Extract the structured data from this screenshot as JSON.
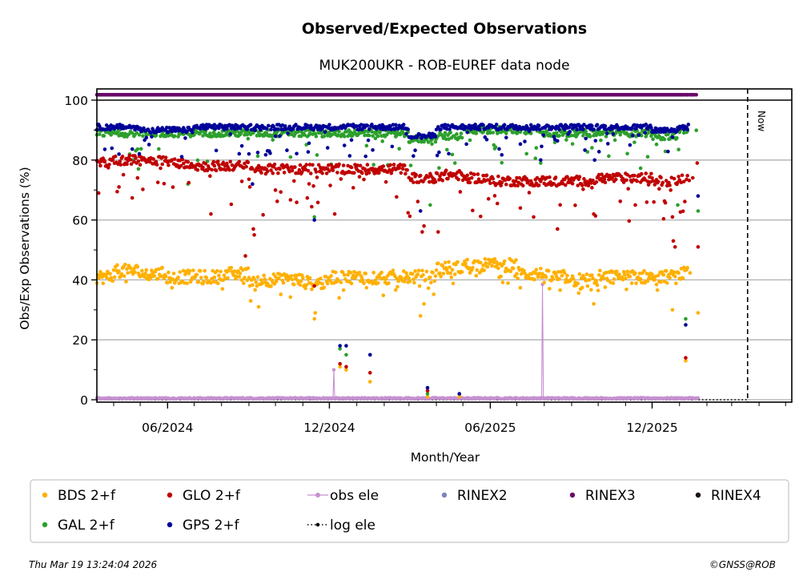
{
  "chart_data": {
    "type": "scatter",
    "title": "Observed/Expected Observations",
    "subtitle": "MUK200UKR - ROB-EUREF data node",
    "xlabel": "Month/Year",
    "ylabel": "Obs/Exp Observations (%)",
    "ylim": [
      0,
      100
    ],
    "yticks": [
      0,
      20,
      40,
      60,
      80,
      100
    ],
    "yminor_ticks": [
      10,
      30,
      50,
      70,
      90
    ],
    "xlim": [
      "2024-03-13",
      "2026-05-08"
    ],
    "xticks": [
      {
        "date": "2024-06-01",
        "label": "06/2024"
      },
      {
        "date": "2024-12-01",
        "label": "12/2024"
      },
      {
        "date": "2025-06-01",
        "label": "06/2025"
      },
      {
        "date": "2025-12-01",
        "label": "12/2025"
      }
    ],
    "xminor_ticks": "monthly",
    "grid": "horizontal",
    "now_marker": {
      "date": "2026-03-19",
      "label": "Now"
    },
    "data_start": "2024-03-13",
    "data_end": "2026-01-22",
    "series": [
      {
        "name": "BDS 2+f",
        "color": "#ffb000",
        "kind": "points",
        "monthly_level": {
          "2024-03": 41,
          "2024-04": 43,
          "2024-05": 42,
          "2024-06": 41,
          "2024-07": 41,
          "2024-08": 42,
          "2024-09": 40,
          "2024-10": 40,
          "2024-11": 39,
          "2024-12": 41,
          "2025-01": 41,
          "2025-02": 41,
          "2025-03": 41,
          "2025-04": 44,
          "2025-05": 45,
          "2025-06": 45,
          "2025-07": 42,
          "2025-08": 41,
          "2025-09": 40,
          "2025-10": 41,
          "2025-11": 41,
          "2025-12": 41,
          "2026-01": 42
        },
        "outliers": [
          [
            "2024-09-03",
            33
          ],
          [
            "2024-09-12",
            31
          ],
          [
            "2024-11-14",
            27
          ],
          [
            "2024-11-15",
            29
          ],
          [
            "2024-12-12",
            34
          ],
          [
            "2025-01-16",
            6
          ],
          [
            "2025-03-14",
            28
          ],
          [
            "2025-03-18",
            32
          ],
          [
            "2024-12-13",
            11
          ],
          [
            "2024-12-20",
            10
          ],
          [
            "2025-03-22",
            1
          ],
          [
            "2025-04-27",
            1
          ],
          [
            "2025-09-26",
            32
          ],
          [
            "2025-12-24",
            30
          ],
          [
            "2026-01-08",
            13
          ],
          [
            "2026-01-22",
            29
          ]
        ]
      },
      {
        "name": "GAL 2+f",
        "color": "#2ca02c",
        "kind": "points",
        "monthly_level": {
          "2024-03": 89,
          "2024-04": 89,
          "2024-05": 89,
          "2024-06": 89,
          "2024-07": 89,
          "2024-08": 89,
          "2024-09": 89,
          "2024-10": 89,
          "2024-11": 89,
          "2024-12": 89,
          "2025-01": 89,
          "2025-02": 89,
          "2025-03": 87,
          "2025-04": 88,
          "2025-05": 90,
          "2025-06": 90,
          "2025-07": 90,
          "2025-08": 89,
          "2025-09": 89,
          "2025-10": 89,
          "2025-11": 89,
          "2025-12": 88,
          "2026-01": 90
        },
        "outliers": [
          [
            "2024-06-24",
            72
          ],
          [
            "2024-11-14",
            61
          ],
          [
            "2024-12-13",
            17
          ],
          [
            "2024-12-20",
            15
          ],
          [
            "2025-01-16",
            15
          ],
          [
            "2025-03-22",
            2
          ],
          [
            "2025-03-25",
            65
          ],
          [
            "2025-04-22",
            79
          ],
          [
            "2025-07-28",
            79
          ],
          [
            "2025-12-30",
            65
          ],
          [
            "2026-01-08",
            27
          ],
          [
            "2026-01-22",
            63
          ]
        ]
      },
      {
        "name": "GLO 2+f",
        "color": "#c00000",
        "kind": "points",
        "monthly_level": {
          "2024-03": 79,
          "2024-04": 80,
          "2024-05": 80,
          "2024-06": 79,
          "2024-07": 78,
          "2024-08": 78,
          "2024-09": 77,
          "2024-10": 77,
          "2024-11": 77,
          "2024-12": 77,
          "2025-01": 77,
          "2025-02": 77,
          "2025-03": 74,
          "2025-04": 75,
          "2025-05": 74,
          "2025-06": 73,
          "2025-07": 73,
          "2025-08": 73,
          "2025-09": 73,
          "2025-10": 74,
          "2025-11": 74,
          "2025-12": 73,
          "2026-01": 74
        },
        "outliers": [
          [
            "2024-03-15",
            69
          ],
          [
            "2024-07-20",
            62
          ],
          [
            "2024-08-28",
            48
          ],
          [
            "2024-09-06",
            57
          ],
          [
            "2024-09-07",
            55
          ],
          [
            "2024-11-14",
            38
          ],
          [
            "2024-12-07",
            62
          ],
          [
            "2024-12-13",
            12
          ],
          [
            "2024-12-20",
            11
          ],
          [
            "2025-01-16",
            9
          ],
          [
            "2025-03-16",
            56
          ],
          [
            "2025-03-18",
            58
          ],
          [
            "2025-03-22",
            3
          ],
          [
            "2025-04-03",
            56
          ],
          [
            "2025-07-05",
            64
          ],
          [
            "2025-08-16",
            57
          ],
          [
            "2025-09-26",
            62
          ],
          [
            "2025-12-03",
            66
          ],
          [
            "2025-12-24",
            61
          ],
          [
            "2025-12-25",
            53
          ],
          [
            "2025-12-27",
            51
          ],
          [
            "2026-01-08",
            14
          ],
          [
            "2026-01-22",
            51
          ],
          [
            "2026-01-21",
            79
          ]
        ]
      },
      {
        "name": "GPS 2+f",
        "color": "#000099",
        "kind": "points",
        "monthly_level": {
          "2024-03": 91,
          "2024-04": 91,
          "2024-05": 90,
          "2024-06": 90,
          "2024-07": 91,
          "2024-08": 91,
          "2024-09": 91,
          "2024-10": 91,
          "2024-11": 91,
          "2024-12": 91,
          "2025-01": 91,
          "2025-02": 91,
          "2025-03": 88,
          "2025-04": 91,
          "2025-05": 91,
          "2025-06": 91,
          "2025-07": 91,
          "2025-08": 91,
          "2025-09": 91,
          "2025-10": 91,
          "2025-11": 91,
          "2025-12": 90,
          "2026-01": 91
        },
        "outliers": [
          [
            "2024-09-05",
            72
          ],
          [
            "2024-11-14",
            60
          ],
          [
            "2024-12-13",
            18
          ],
          [
            "2024-12-20",
            18
          ],
          [
            "2025-01-16",
            15
          ],
          [
            "2025-03-14",
            63
          ],
          [
            "2025-03-22",
            4
          ],
          [
            "2025-04-27",
            2
          ],
          [
            "2025-07-28",
            80
          ],
          [
            "2025-09-27",
            80
          ],
          [
            "2026-01-08",
            25
          ],
          [
            "2026-01-22",
            68
          ]
        ]
      },
      {
        "name": "obs ele",
        "color": "#c690d0",
        "kind": "line-points",
        "baseline": 0.3,
        "spikes": [
          [
            "2024-12-06",
            10
          ],
          [
            "2025-04-27",
            1.5
          ],
          [
            "2025-07-30",
            38.5
          ]
        ]
      },
      {
        "name": "log ele",
        "color": "#000000",
        "kind": "dotted-line",
        "value": 0
      },
      {
        "name": "RINEX2",
        "color": "#8080c0",
        "kind": "points",
        "values": []
      },
      {
        "name": "RINEX3",
        "color": "#6a0a6a",
        "kind": "points",
        "value": 101.8
      },
      {
        "name": "RINEX4",
        "color": "#1a0a1a",
        "kind": "points",
        "values": []
      }
    ],
    "legend": {
      "placement": "bottom",
      "columns": 6,
      "entries": [
        {
          "label": "BDS 2+f",
          "color": "#ffb000",
          "marker": "dot"
        },
        {
          "label": "GLO 2+f",
          "color": "#c00000",
          "marker": "dot"
        },
        {
          "label": "obs ele",
          "color": "#c690d0",
          "marker": "line-dot"
        },
        {
          "label": "RINEX2",
          "color": "#8080c0",
          "marker": "dot"
        },
        {
          "label": "RINEX3",
          "color": "#6a0a6a",
          "marker": "dot"
        },
        {
          "label": "RINEX4",
          "color": "#1a0a1a",
          "marker": "dot"
        },
        {
          "label": "GAL 2+f",
          "color": "#2ca02c",
          "marker": "dot"
        },
        {
          "label": "GPS 2+f",
          "color": "#000099",
          "marker": "dot"
        },
        {
          "label": "log ele",
          "color": "#000000",
          "marker": "dotted-line-dot"
        }
      ]
    }
  },
  "footer": {
    "timestamp": "Thu Mar 19 13:24:04 2026",
    "copyright": "©GNSS@ROB"
  }
}
